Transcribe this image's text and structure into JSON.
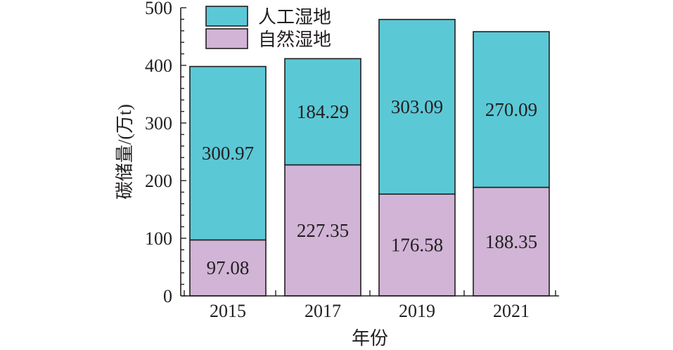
{
  "chart_data": {
    "type": "bar",
    "stacked": true,
    "categories": [
      "2015",
      "2017",
      "2019",
      "2021"
    ],
    "series": [
      {
        "name": "自然湿地",
        "values": [
          97.08,
          227.35,
          176.58,
          188.35
        ],
        "color": "#d1b4d6"
      },
      {
        "name": "人工湿地",
        "values": [
          300.97,
          184.29,
          303.09,
          270.09
        ],
        "color": "#5bc8d6"
      }
    ],
    "xlabel": "年份",
    "ylabel": "碳储量/(万t)",
    "ylim": [
      0,
      500
    ],
    "yticks": [
      0,
      100,
      200,
      300,
      400,
      500
    ],
    "legend_position": "top-left",
    "legend_order": [
      "人工湿地",
      "自然湿地"
    ],
    "grid": false
  }
}
